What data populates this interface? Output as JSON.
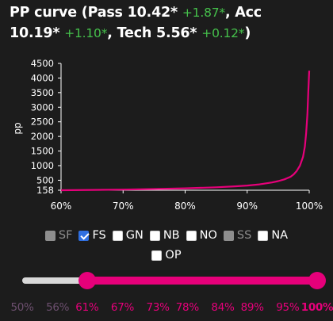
{
  "title": {
    "prefix": "PP curve (Pass ",
    "pass_value": "10.42*",
    "pass_delta": "+1.87*",
    "acc_label": ", Acc",
    "acc_value": "10.19*",
    "acc_delta": "+1.10*",
    "tech_label": ", Tech ",
    "tech_value": "5.56*",
    "tech_delta": "+0.12*",
    "suffix": ")"
  },
  "chart_data": {
    "type": "line",
    "ylabel": "pp",
    "xlabel": "",
    "xlim": [
      60,
      100
    ],
    "x_ticks": [
      "60%",
      "70%",
      "80%",
      "90%",
      "100%"
    ],
    "y_ticks": [
      "158",
      "500",
      "1000",
      "1500",
      "2000",
      "2500",
      "3000",
      "3500",
      "4000",
      "4500"
    ],
    "ylim": [
      158,
      4500
    ],
    "grid": false,
    "line_color": "#e6007a",
    "series": [
      {
        "x": [
          60,
          65,
          70,
          75,
          80,
          85,
          88,
          90,
          92,
          94,
          95,
          96,
          97,
          97.5,
          98,
          98.5,
          99,
          99.3,
          99.5,
          99.7,
          99.85,
          100
        ],
        "y": [
          158,
          168,
          180,
          198,
          222,
          258,
          290,
          318,
          360,
          425,
          470,
          530,
          620,
          700,
          820,
          1000,
          1300,
          1650,
          2100,
          2750,
          3500,
          4250
        ]
      }
    ]
  },
  "mods": {
    "row1": [
      {
        "label": "SF",
        "state": "disabled"
      },
      {
        "label": "FS",
        "state": "checked"
      },
      {
        "label": "GN",
        "state": "unchecked"
      },
      {
        "label": "NB",
        "state": "unchecked"
      },
      {
        "label": "NO",
        "state": "unchecked"
      },
      {
        "label": "SS",
        "state": "disabled"
      },
      {
        "label": "NA",
        "state": "unchecked"
      }
    ],
    "row2": [
      {
        "label": "OP",
        "state": "unchecked"
      }
    ]
  },
  "slider": {
    "min_percent": 50,
    "max_percent": 100,
    "range_low": 61,
    "range_high": 100,
    "rail_color": "#d8d8d8",
    "track_color": "#e6007a",
    "marks": [
      {
        "label": "50%",
        "value": 50,
        "active": false
      },
      {
        "label": "56%",
        "value": 56,
        "active": false
      },
      {
        "label": "61%",
        "value": 61,
        "active": true
      },
      {
        "label": "67%",
        "value": 67,
        "active": true
      },
      {
        "label": "73%",
        "value": 73,
        "active": true
      },
      {
        "label": "78%",
        "value": 78,
        "active": true
      },
      {
        "label": "84%",
        "value": 84,
        "active": true
      },
      {
        "label": "89%",
        "value": 89,
        "active": true
      },
      {
        "label": "95%",
        "value": 95,
        "active": true
      },
      {
        "label": "100%",
        "value": 100,
        "active": true,
        "end": true
      }
    ]
  }
}
